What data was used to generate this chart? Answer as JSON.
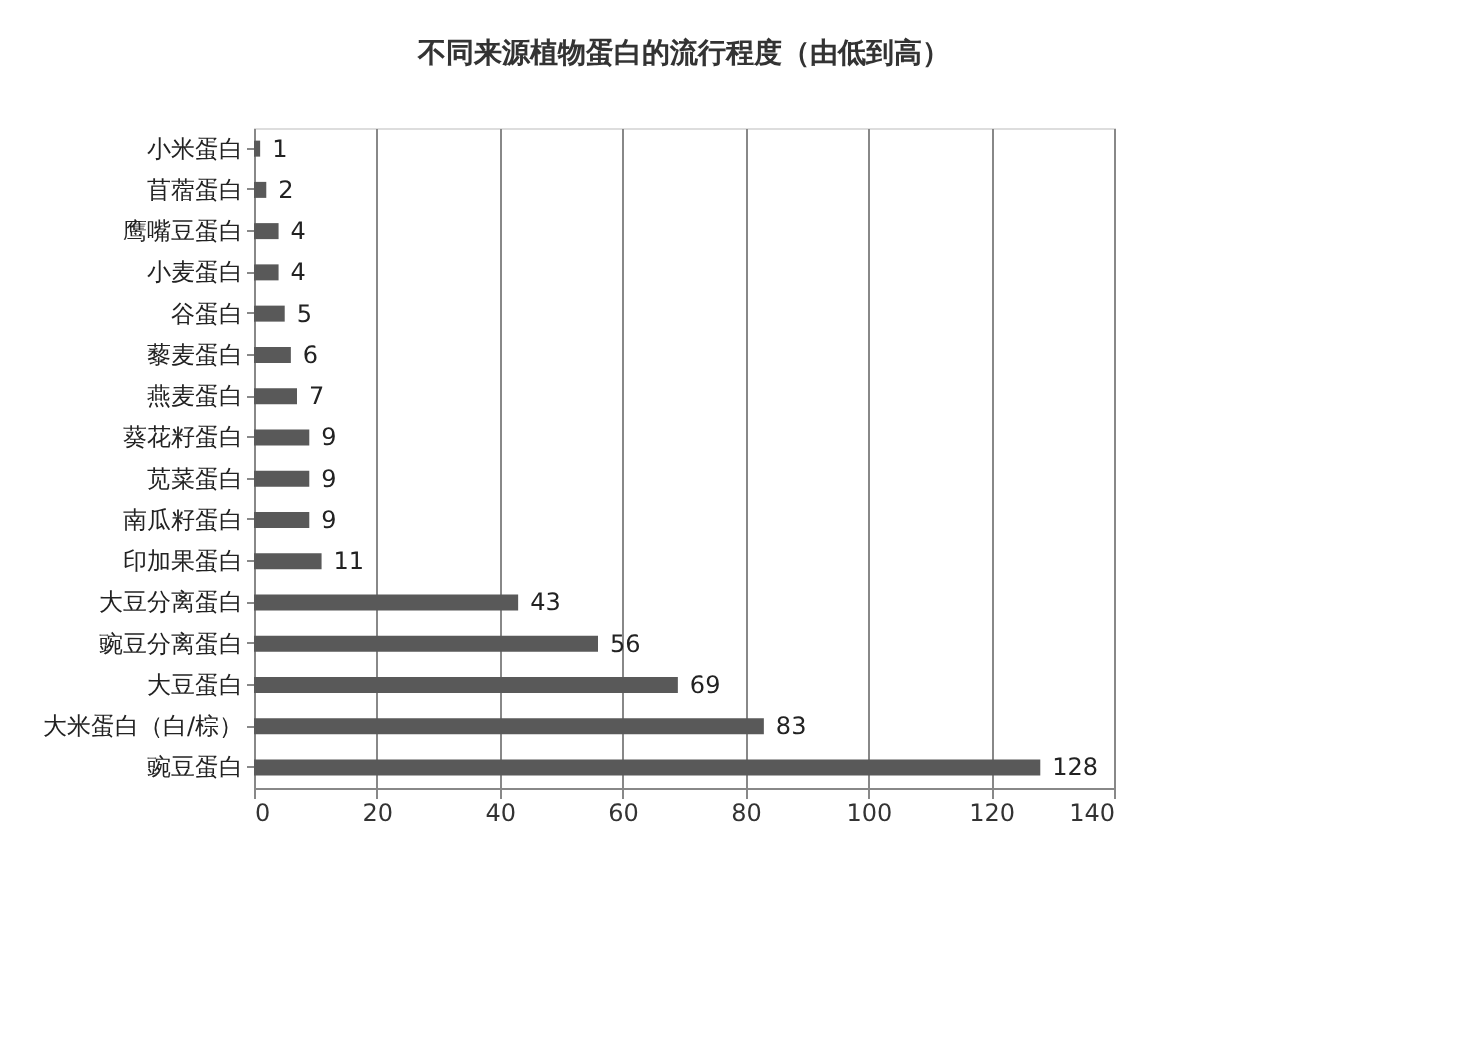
{
  "chart_data": {
    "type": "bar",
    "orientation": "horizontal",
    "title": "不同来源植物蛋白的流行程度（由低到高）",
    "categories": [
      "小米蛋白",
      "苜蓿蛋白",
      "鹰嘴豆蛋白",
      "小麦蛋白",
      "谷蛋白",
      "藜麦蛋白",
      "燕麦蛋白",
      "葵花籽蛋白",
      "苋菜蛋白",
      "南瓜籽蛋白",
      "印加果蛋白",
      "大豆分离蛋白",
      "豌豆分离蛋白",
      "大豆蛋白",
      "大米蛋白（白/棕）",
      "豌豆蛋白"
    ],
    "values": [
      1,
      2,
      4,
      4,
      5,
      6,
      7,
      9,
      9,
      9,
      11,
      43,
      56,
      69,
      83,
      128
    ],
    "color": "#595959",
    "xlim": [
      0,
      140
    ],
    "xticks": [
      0,
      20,
      40,
      60,
      80,
      100,
      120,
      140
    ],
    "grid": "x",
    "data_labels": true
  }
}
